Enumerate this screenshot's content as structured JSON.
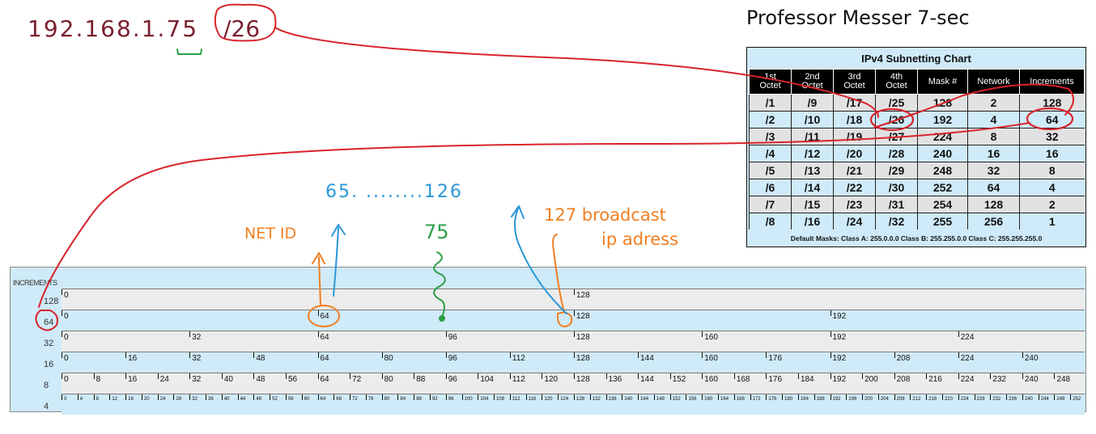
{
  "heading": "Professor Messer 7-sec",
  "ip": {
    "address": "192.168.1.75",
    "cidr": "/26"
  },
  "notes": {
    "range": "65. ........126",
    "net_id": "NET ID",
    "host": "75",
    "broadcast_line1": "127 broadcast",
    "broadcast_line2": "ip adress"
  },
  "subnet_chart": {
    "title": "IPv4 Subnetting Chart",
    "columns": [
      {
        "line1": "1st",
        "line2": "Octet"
      },
      {
        "line1": "2nd",
        "line2": "Octet"
      },
      {
        "line1": "3rd",
        "line2": "Octet"
      },
      {
        "line1": "4th",
        "line2": "Octet"
      },
      {
        "line1": "Mask #",
        "line2": ""
      },
      {
        "line1": "Network",
        "line2": ""
      },
      {
        "line1": "Increments",
        "line2": ""
      }
    ],
    "rows": [
      [
        "/1",
        "/9",
        "/17",
        "/25",
        "128",
        "2",
        "128"
      ],
      [
        "/2",
        "/10",
        "/18",
        "/26",
        "192",
        "4",
        "64"
      ],
      [
        "/3",
        "/11",
        "/19",
        "/27",
        "224",
        "8",
        "32"
      ],
      [
        "/4",
        "/12",
        "/20",
        "/28",
        "240",
        "16",
        "16"
      ],
      [
        "/5",
        "/13",
        "/21",
        "/29",
        "248",
        "32",
        "8"
      ],
      [
        "/6",
        "/14",
        "/22",
        "/30",
        "252",
        "64",
        "4"
      ],
      [
        "/7",
        "/15",
        "/23",
        "/31",
        "254",
        "128",
        "2"
      ],
      [
        "/8",
        "/16",
        "/24",
        "/32",
        "255",
        "256",
        "1"
      ]
    ],
    "footer": "Default Masks: Class A: 255.0.0.0   Class B: 255.255.0.0   Class C: 255.255.255.0"
  },
  "increments_chart": {
    "title": "INCREMENTS",
    "rows": [
      {
        "label": "128",
        "step": 128
      },
      {
        "label": "64",
        "step": 64
      },
      {
        "label": "32",
        "step": 32
      },
      {
        "label": "16",
        "step": 16
      },
      {
        "label": "8",
        "step": 8
      },
      {
        "label": "4",
        "step": 4
      }
    ],
    "max": 256
  },
  "colors": {
    "red": "#d9232a",
    "orange": "#f07f22",
    "blue": "#2a97d6",
    "green": "#2d9e45",
    "maroon": "#7a1f2e"
  }
}
